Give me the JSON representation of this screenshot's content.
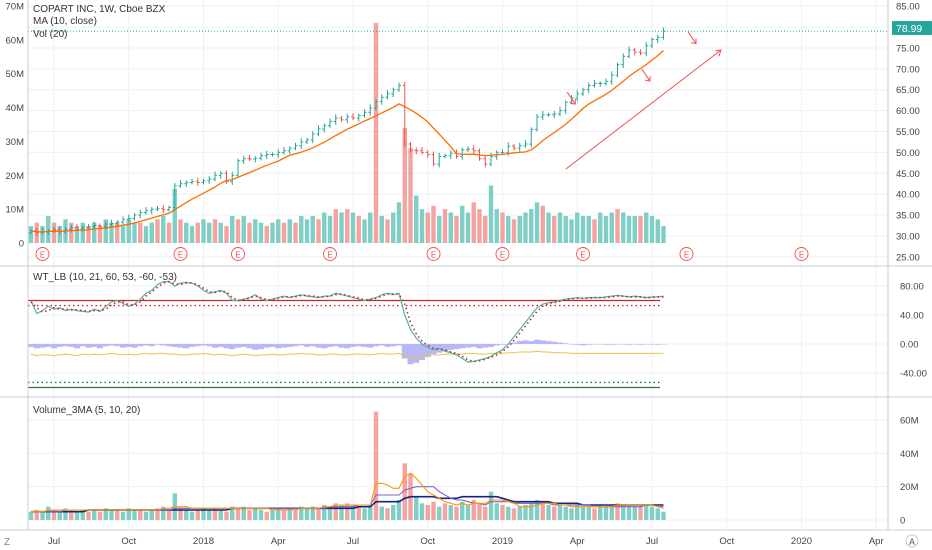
{
  "header": {
    "title": "COPART INC, 1W, Cboe BZX",
    "ma_label": "MA (10, close)",
    "vol_label": "Vol (20)"
  },
  "price_badge": "78.99",
  "earnings_marker": "E",
  "corner": {
    "left": "Z",
    "right": "A"
  },
  "colors": {
    "up": "#26a69a",
    "down": "#ef5350",
    "ma": "#ff6d00",
    "vol_up": "#7fcfc7",
    "vol_down": "#f4a3a1",
    "wave": "#4fb5a5",
    "dots": "#c62828",
    "hist": "#b7b8f5",
    "ma_fast": "#7f62c9",
    "ma_mid": "#ff9800",
    "ma_slow": "#1a237e",
    "grid": "#eef0f3",
    "axis_text": "#444",
    "annotation": "#ef5350"
  },
  "chart_data": [
    {
      "type": "candlestick",
      "title": "COPART INC, 1W, Cboe BZX",
      "price_axis": {
        "ticks": [
          "85.00",
          "80.00",
          "75.00",
          "70.00",
          "65.00",
          "60.00",
          "55.00",
          "50.00",
          "45.00",
          "40.00",
          "35.00",
          "30.00",
          "25.00"
        ],
        "range": [
          24,
          86
        ]
      },
      "volume_axis": {
        "ticks": [
          "70M",
          "60M",
          "50M",
          "40M",
          "30M",
          "20M",
          "10M",
          "0"
        ],
        "range": [
          0,
          71
        ]
      },
      "x_ticks": [
        "Jul",
        "Oct",
        "2018",
        "Apr",
        "Jul",
        "Oct",
        "2019",
        "Apr",
        "Jul",
        "Oct",
        "2020",
        "Apr"
      ],
      "x_tick_weeks": [
        4,
        17,
        30,
        43,
        56,
        69,
        82,
        95,
        108,
        121,
        134,
        147
      ],
      "closes": [
        31.2,
        30.8,
        31.0,
        31.2,
        31.5,
        31.0,
        31.6,
        32.0,
        31.6,
        32.0,
        32.2,
        32.5,
        32.3,
        32.8,
        33.0,
        33.3,
        34.0,
        34.2,
        35.0,
        35.6,
        36.0,
        36.4,
        36.5,
        36.3,
        36.8,
        42.0,
        42.5,
        42.8,
        43.0,
        42.8,
        43.2,
        43.6,
        44.5,
        45.0,
        43.0,
        44.5,
        48.0,
        48.5,
        48.4,
        48.6,
        49.2,
        49.5,
        49.5,
        50.0,
        50.4,
        51.0,
        51.6,
        52.5,
        53.0,
        54.4,
        55.6,
        56.4,
        57.4,
        58.2,
        57.8,
        58.5,
        58.2,
        58.8,
        59.6,
        60.6,
        62.2,
        63.2,
        64.0,
        65.0,
        66.0,
        52.0,
        50.5,
        50.4,
        50.0,
        49.5,
        47.2,
        49.0,
        49.2,
        49.8,
        49.0,
        50.6,
        50.8,
        50.4,
        48.5,
        47.2,
        49.0,
        50.0,
        50.0,
        51.5,
        51.0,
        51.6,
        52.0,
        55.5,
        58.5,
        59.0,
        59.0,
        59.2,
        60.0,
        62.0,
        63.0,
        64.0,
        65.0,
        66.0,
        66.5,
        66.5,
        67.0,
        68.5,
        71.0,
        73.0,
        74.5,
        74.0,
        73.8,
        75.5,
        77.0,
        77.5,
        78.99
      ],
      "earnings_weeks": [
        2,
        26,
        36,
        52,
        70,
        82,
        96,
        114,
        134
      ],
      "annotation_arrows": [
        {
          "week": 95,
          "price": 62.5
        },
        {
          "week": 108,
          "price": 68.0
        },
        {
          "week": 116,
          "price": 77.0
        }
      ],
      "trend_line": {
        "from": {
          "week": 93,
          "price": 46.0
        },
        "to": {
          "week": 120,
          "price": 74.5
        }
      }
    },
    {
      "type": "line",
      "title": "WT_LB (10, 21, 60, 53, -60, -53)",
      "y_ticks": [
        "80.00",
        "40.00",
        "0.00",
        "-40.00"
      ],
      "range": [
        -58,
        90
      ],
      "levels": [
        60,
        53,
        -60,
        -53
      ],
      "wt1": [
        60,
        42,
        46,
        52,
        48,
        50,
        46,
        48,
        46,
        45,
        44,
        48,
        45,
        52,
        58,
        60,
        56,
        52,
        55,
        62,
        70,
        74,
        82,
        86,
        86,
        80,
        84,
        85,
        84,
        80,
        74,
        70,
        72,
        74,
        70,
        60,
        60,
        62,
        64,
        68,
        62,
        60,
        62,
        64,
        66,
        64,
        66,
        68,
        66,
        65,
        64,
        66,
        66,
        70,
        68,
        66,
        64,
        62,
        60,
        62,
        64,
        68,
        70,
        68,
        70,
        40,
        20,
        8,
        0,
        -5,
        -8,
        -6,
        -10,
        -12,
        -15,
        -20,
        -25,
        -24,
        -22,
        -20,
        -17,
        -12,
        -8,
        0,
        10,
        20,
        30,
        40,
        50,
        55,
        57,
        58,
        60,
        62,
        63,
        64,
        63,
        64,
        64,
        64,
        65,
        66,
        67,
        66,
        65,
        66,
        65,
        64,
        65,
        65,
        66
      ],
      "wt2": [
        58,
        50,
        44,
        46,
        50,
        48,
        48,
        47,
        47,
        46,
        45,
        46,
        46,
        48,
        54,
        58,
        58,
        54,
        54,
        58,
        66,
        72,
        78,
        84,
        86,
        83,
        82,
        84,
        84,
        82,
        77,
        72,
        71,
        73,
        72,
        64,
        60,
        61,
        63,
        66,
        64,
        61,
        61,
        63,
        65,
        65,
        65,
        67,
        67,
        66,
        65,
        65,
        66,
        68,
        69,
        67,
        65,
        63,
        61,
        61,
        63,
        66,
        69,
        69,
        69,
        55,
        30,
        14,
        4,
        -2,
        -6,
        -7,
        -8,
        -11,
        -13,
        -17,
        -22,
        -24,
        -23,
        -21,
        -18,
        -15,
        -10,
        -4,
        5,
        15,
        25,
        35,
        45,
        52,
        56,
        57,
        59,
        61,
        62,
        63,
        63,
        63,
        64,
        64,
        64,
        65,
        66,
        66,
        65,
        65,
        65,
        64,
        64,
        65,
        65
      ],
      "hist": [
        -4,
        -6,
        -5,
        -4,
        -6,
        -4,
        -3,
        -4,
        -6,
        -3,
        -5,
        -4,
        -6,
        -3,
        -2,
        -3,
        -5,
        -4,
        -5,
        -3,
        -2,
        -3,
        -1,
        -2,
        -3,
        -4,
        -5,
        -6,
        -4,
        -3,
        -2,
        -3,
        -5,
        -4,
        -6,
        -7,
        -5,
        -4,
        -6,
        -8,
        -7,
        -5,
        -4,
        -6,
        -5,
        -4,
        -3,
        -2,
        -4,
        -3,
        -5,
        -6,
        -4,
        -3,
        -5,
        -6,
        -4,
        -3,
        -4,
        -5,
        -3,
        -2,
        -4,
        -3,
        -2,
        -20,
        -28,
        -26,
        -22,
        -18,
        -14,
        -12,
        -10,
        -8,
        -7,
        -6,
        -5,
        -4,
        -6,
        -5,
        -4,
        -2,
        -1,
        0,
        2,
        4,
        5,
        4,
        6,
        5,
        4,
        3,
        2,
        1,
        0,
        -1,
        -2,
        -1,
        0,
        0,
        -1,
        -1,
        0,
        0,
        -1,
        0,
        -1,
        0,
        0,
        -1,
        0
      ],
      "yellow": [
        -14,
        -16,
        -15,
        -15,
        -16,
        -15,
        -14,
        -15,
        -16,
        -14,
        -15,
        -14,
        -15,
        -14,
        -13,
        -14,
        -15,
        -14,
        -15,
        -14,
        -13,
        -14,
        -13,
        -13,
        -14,
        -14,
        -15,
        -15,
        -14,
        -14,
        -13,
        -14,
        -15,
        -14,
        -15,
        -16,
        -15,
        -14,
        -15,
        -16,
        -15,
        -15,
        -14,
        -15,
        -15,
        -14,
        -14,
        -13,
        -14,
        -14,
        -15,
        -15,
        -14,
        -14,
        -15,
        -15,
        -14,
        -14,
        -14,
        -15,
        -14,
        -13,
        -14,
        -14,
        -13,
        -16,
        -18,
        -18,
        -17,
        -16,
        -15,
        -15,
        -14,
        -14,
        -14,
        -14,
        -13,
        -13,
        -14,
        -14,
        -13,
        -13,
        -13,
        -12,
        -12,
        -11,
        -11,
        -11,
        -10,
        -11,
        -11,
        -12,
        -12,
        -12,
        -13,
        -13,
        -13,
        -13,
        -13,
        -13,
        -13,
        -13,
        -13,
        -13,
        -13,
        -13,
        -13,
        -13,
        -13,
        -13,
        -13
      ]
    },
    {
      "type": "bar",
      "title": "Volume_3MA (5, 10, 20)",
      "y_ticks": [
        "60M",
        "40M",
        "20M",
        "0"
      ],
      "range": [
        0,
        70
      ],
      "volume": [
        5,
        6,
        5,
        8,
        6,
        5,
        7,
        6,
        5,
        6,
        5,
        6,
        5,
        7,
        6,
        6,
        5,
        7,
        6,
        6,
        5,
        6,
        7,
        8,
        6,
        16,
        7,
        6,
        5,
        6,
        7,
        6,
        7,
        6,
        5,
        8,
        7,
        8,
        6,
        7,
        6,
        5,
        6,
        7,
        6,
        7,
        6,
        8,
        7,
        8,
        7,
        9,
        8,
        10,
        9,
        10,
        9,
        8,
        7,
        9,
        65,
        8,
        7,
        9,
        12,
        34,
        28,
        14,
        10,
        9,
        11,
        8,
        10,
        9,
        8,
        11,
        9,
        12,
        10,
        8,
        17,
        10,
        9,
        8,
        7,
        8,
        9,
        10,
        12,
        11,
        9,
        8,
        9,
        8,
        7,
        9,
        8,
        8,
        7,
        9,
        8,
        9,
        10,
        9,
        8,
        8,
        8,
        9,
        8,
        7,
        5
      ],
      "vol_up": [
        true,
        false,
        true,
        true,
        false,
        true,
        true,
        false,
        true,
        true,
        false,
        true,
        false,
        true,
        true,
        false,
        true,
        true,
        true,
        false,
        true,
        true,
        false,
        true,
        false,
        true,
        false,
        true,
        true,
        false,
        true,
        true,
        false,
        true,
        false,
        true,
        false,
        true,
        false,
        true,
        true,
        false,
        true,
        true,
        false,
        true,
        false,
        true,
        true,
        true,
        false,
        true,
        true,
        false,
        true,
        false,
        true,
        false,
        true,
        true,
        false,
        true,
        false,
        true,
        true,
        false,
        false,
        true,
        true,
        false,
        false,
        true,
        false,
        true,
        false,
        true,
        true,
        false,
        false,
        false,
        true,
        true,
        false,
        true,
        false,
        true,
        true,
        true,
        true,
        false,
        true,
        false,
        true,
        true,
        true,
        true,
        true,
        true,
        false,
        true,
        true,
        true,
        false,
        true,
        true,
        true,
        false,
        true,
        true,
        true,
        true
      ],
      "ma5": [
        5,
        5,
        5,
        6,
        6,
        6,
        6,
        6,
        6,
        6,
        6,
        6,
        6,
        6,
        6,
        6,
        6,
        6,
        6,
        6,
        6,
        6,
        6,
        7,
        7,
        8,
        8,
        8,
        7,
        7,
        7,
        7,
        7,
        7,
        7,
        7,
        7,
        7,
        7,
        7,
        7,
        7,
        6,
        6,
        6,
        6,
        6,
        7,
        7,
        7,
        7,
        8,
        8,
        9,
        9,
        9,
        9,
        9,
        9,
        9,
        22,
        22,
        21,
        19,
        19,
        26,
        28,
        25,
        21,
        17,
        15,
        13,
        11,
        10,
        9,
        10,
        9,
        10,
        10,
        10,
        12,
        12,
        12,
        11,
        10,
        8,
        8,
        8,
        9,
        10,
        10,
        10,
        9,
        9,
        8,
        8,
        8,
        8,
        8,
        8,
        8,
        8,
        9,
        9,
        9,
        9,
        9,
        9,
        9,
        8,
        7
      ],
      "ma10": [
        5,
        5,
        5,
        5,
        5,
        5,
        6,
        6,
        6,
        6,
        6,
        6,
        6,
        6,
        6,
        6,
        6,
        6,
        6,
        6,
        6,
        6,
        6,
        6,
        6,
        7,
        7,
        7,
        7,
        7,
        7,
        7,
        7,
        7,
        7,
        7,
        7,
        7,
        7,
        7,
        7,
        7,
        7,
        7,
        7,
        7,
        7,
        7,
        7,
        7,
        7,
        7,
        8,
        8,
        8,
        8,
        8,
        9,
        9,
        9,
        15,
        15,
        15,
        15,
        15,
        18,
        19,
        20,
        20,
        20,
        20,
        17,
        15,
        13,
        12,
        12,
        11,
        10,
        10,
        9,
        11,
        11,
        11,
        11,
        10,
        10,
        10,
        10,
        10,
        10,
        10,
        9,
        9,
        9,
        9,
        9,
        9,
        9,
        8,
        8,
        8,
        8,
        8,
        8,
        8,
        8,
        8,
        9,
        9,
        8,
        8
      ],
      "ma20": [
        5,
        5,
        5,
        5,
        5,
        5,
        5,
        5,
        5,
        5,
        6,
        6,
        6,
        6,
        6,
        6,
        6,
        6,
        6,
        6,
        6,
        6,
        6,
        6,
        6,
        6,
        6,
        6,
        6,
        6,
        6,
        6,
        6,
        6,
        6,
        7,
        7,
        7,
        7,
        7,
        7,
        7,
        7,
        7,
        7,
        7,
        7,
        7,
        7,
        7,
        7,
        7,
        7,
        7,
        7,
        7,
        7,
        8,
        8,
        8,
        11,
        11,
        11,
        11,
        11,
        13,
        14,
        14,
        14,
        14,
        14,
        13,
        13,
        13,
        13,
        14,
        14,
        14,
        14,
        14,
        14,
        14,
        13,
        12,
        11,
        11,
        11,
        11,
        11,
        11,
        11,
        10,
        10,
        10,
        10,
        10,
        9,
        9,
        9,
        9,
        9,
        9,
        9,
        9,
        9,
        9,
        9,
        9,
        9,
        9,
        9
      ]
    }
  ]
}
